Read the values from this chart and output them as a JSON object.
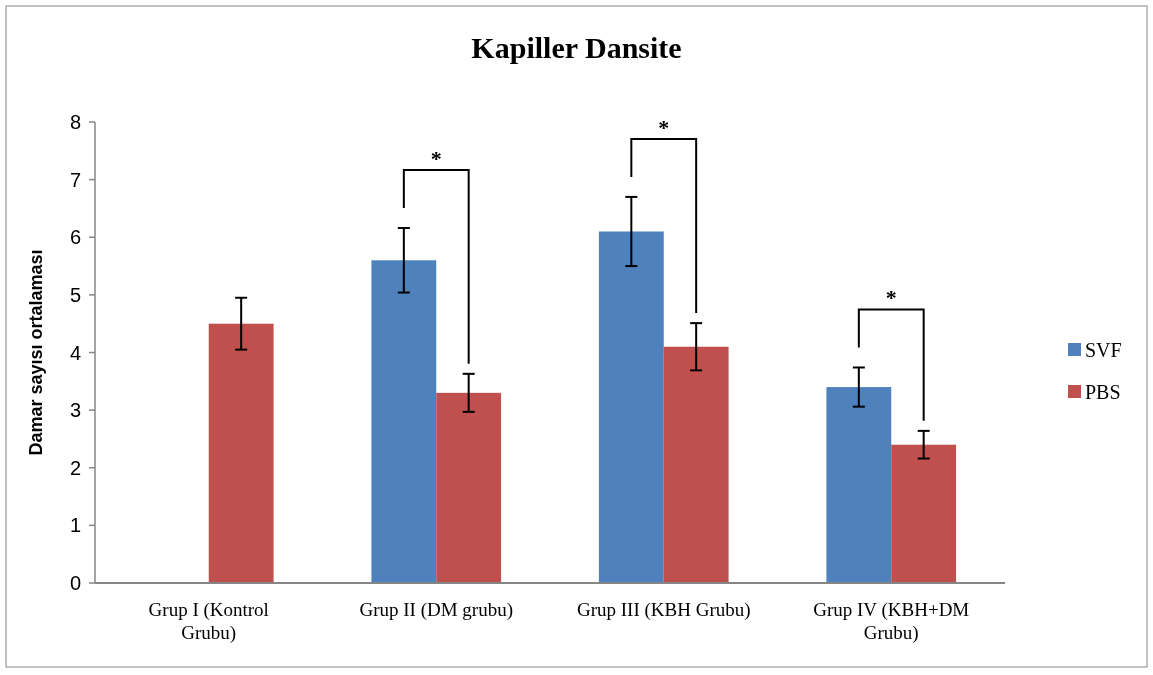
{
  "chart_data": {
    "type": "bar",
    "title": "Kapiller Dansite",
    "ylabel": "Damar sayısı ortalaması",
    "categories": [
      "Grup I (Kontrol Grubu)",
      "Grup II (DM grubu)",
      "Grup III (KBH Grubu)",
      "Grup IV (KBH+DM Grubu)"
    ],
    "series": [
      {
        "name": "SVF",
        "color": "#4f81bd",
        "values": [
          null,
          5.6,
          6.1,
          3.4
        ],
        "errors": [
          null,
          0.56,
          0.6,
          0.34
        ]
      },
      {
        "name": "PBS",
        "color": "#c0504d",
        "values": [
          4.5,
          3.3,
          4.1,
          2.4
        ],
        "errors": [
          0.45,
          0.33,
          0.41,
          0.24
        ]
      }
    ],
    "ylim": [
      0,
      8
    ],
    "yticks": [
      0,
      1,
      2,
      3,
      4,
      5,
      6,
      7,
      8
    ],
    "grid": false,
    "legend": "right",
    "annotations": [
      "*",
      "*",
      "*"
    ]
  }
}
